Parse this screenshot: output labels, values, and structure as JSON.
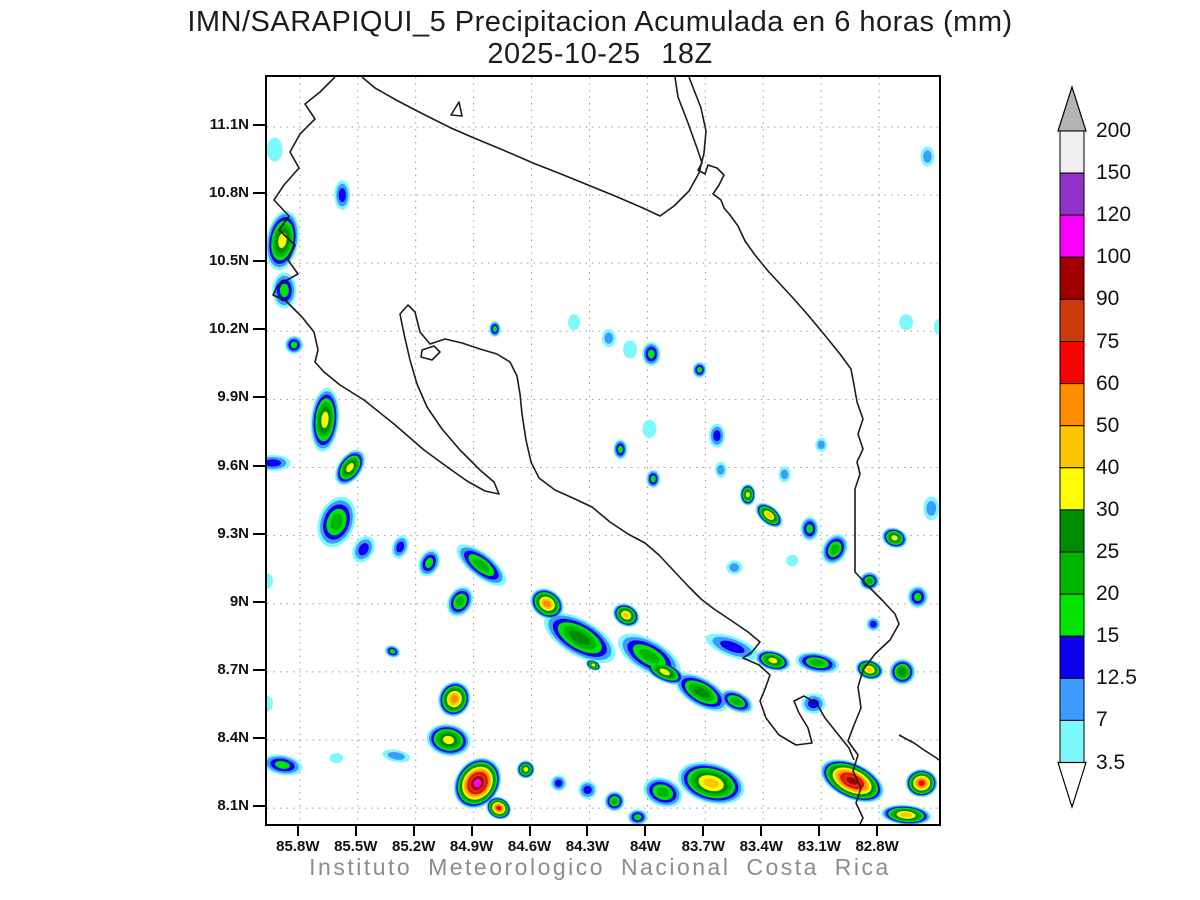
{
  "title": {
    "line1": "IMN/SARAPIQUI_5 Precipitacion Acumulada en 6 horas (mm)",
    "line2": "2025-10-25 18Z"
  },
  "footer": "Instituto Meteorologico Nacional Costa Rica",
  "chart_data": {
    "type": "contour-map",
    "variable": "Precipitacion Acumulada en 6 horas (mm)",
    "valid_time": "2025-10-25 18Z",
    "model_domain": "IMN/SARAPIQUI_5",
    "lon_range_degW": [
      85.97,
      82.49
    ],
    "lat_range_degN": [
      11.32,
      8.03
    ],
    "lon_ticks_degW": [
      85.8,
      85.5,
      85.2,
      84.9,
      84.6,
      84.3,
      84.0,
      83.7,
      83.4,
      83.1,
      82.8
    ],
    "lon_tick_labels": [
      "85.8W",
      "85.5W",
      "85.2W",
      "84.9W",
      "84.6W",
      "84.3W",
      "84W",
      "83.7W",
      "83.4W",
      "83.1W",
      "82.8W"
    ],
    "lat_ticks_degN": [
      11.1,
      10.8,
      10.5,
      10.2,
      9.9,
      9.6,
      9.3,
      9.0,
      8.7,
      8.4,
      8.1
    ],
    "lat_tick_labels": [
      "11.1N",
      "10.8N",
      "10.5N",
      "10.2N",
      "9.9N",
      "9.6N",
      "9.3N",
      "9N",
      "8.7N",
      "8.4N",
      "8.1N"
    ],
    "grid": "dotted",
    "colorbar": {
      "units": "mm",
      "levels": [
        3.5,
        7,
        12.5,
        15,
        20,
        25,
        30,
        40,
        50,
        60,
        75,
        90,
        100,
        120,
        150,
        200
      ],
      "colors_low_to_high": [
        "#7ef9fb",
        "#3d9bfe",
        "#0d00f2",
        "#00e400",
        "#00b400",
        "#008c00",
        "#fdfd00",
        "#fec800",
        "#fe8d00",
        "#fb0000",
        "#cc3a0e",
        "#a10000",
        "#fb00fb",
        "#9231c8",
        "#efefef"
      ],
      "above_top_color": "#b4b4b4",
      "below_bottom_color": "#ffffff",
      "labels_top_to_bottom": [
        "200",
        "150",
        "120",
        "100",
        "90",
        "75",
        "60",
        "50",
        "40",
        "30",
        "25",
        "20",
        "15",
        "12.5",
        "7",
        "3.5"
      ]
    },
    "cell_format": [
      "lonW",
      "latN",
      "rx_deg",
      "ry_deg",
      "rotation_deg",
      "max_level_index"
    ],
    "cells": [
      [
        85.93,
        11.0,
        0.041,
        0.053,
        0,
        0
      ],
      [
        85.89,
        10.6,
        0.083,
        0.132,
        10,
        6
      ],
      [
        85.88,
        10.38,
        0.062,
        0.079,
        0,
        3
      ],
      [
        85.58,
        10.8,
        0.041,
        0.066,
        0,
        2
      ],
      [
        85.83,
        10.14,
        0.047,
        0.04,
        0,
        3
      ],
      [
        85.67,
        9.81,
        0.073,
        0.141,
        5,
        6
      ],
      [
        85.54,
        9.6,
        0.062,
        0.088,
        35,
        6
      ],
      [
        85.94,
        9.62,
        0.093,
        0.035,
        0,
        2
      ],
      [
        85.61,
        9.36,
        0.093,
        0.115,
        20,
        4
      ],
      [
        85.47,
        9.24,
        0.052,
        0.062,
        30,
        2
      ],
      [
        85.28,
        9.25,
        0.041,
        0.053,
        20,
        2
      ],
      [
        85.13,
        9.18,
        0.052,
        0.062,
        25,
        3
      ],
      [
        84.97,
        9.01,
        0.062,
        0.07,
        30,
        4
      ],
      [
        85.97,
        9.1,
        0.031,
        0.035,
        0,
        0
      ],
      [
        84.79,
        10.21,
        0.031,
        0.035,
        0,
        3
      ],
      [
        84.14,
        9.68,
        0.036,
        0.044,
        0,
        3
      ],
      [
        83.97,
        9.55,
        0.036,
        0.04,
        0,
        3
      ],
      [
        83.64,
        9.74,
        0.041,
        0.053,
        0,
        2
      ],
      [
        84.2,
        10.17,
        0.036,
        0.04,
        0,
        1
      ],
      [
        83.98,
        10.1,
        0.047,
        0.053,
        0,
        3
      ],
      [
        83.73,
        10.03,
        0.036,
        0.035,
        0,
        3
      ],
      [
        82.55,
        10.97,
        0.036,
        0.044,
        0,
        1
      ],
      [
        82.66,
        10.24,
        0.036,
        0.035,
        0,
        0
      ],
      [
        82.49,
        10.22,
        0.026,
        0.035,
        0,
        0
      ],
      [
        84.38,
        10.24,
        0.031,
        0.035,
        0,
        0
      ],
      [
        84.09,
        10.12,
        0.036,
        0.04,
        0,
        0
      ],
      [
        83.99,
        9.77,
        0.036,
        0.04,
        0,
        0
      ],
      [
        83.62,
        9.59,
        0.031,
        0.035,
        0,
        1
      ],
      [
        83.55,
        9.16,
        0.041,
        0.031,
        0,
        1
      ],
      [
        84.86,
        9.17,
        0.155,
        0.053,
        38,
        4
      ],
      [
        84.52,
        9.0,
        0.093,
        0.062,
        35,
        8
      ],
      [
        84.35,
        8.85,
        0.207,
        0.079,
        30,
        5
      ],
      [
        84.11,
        8.95,
        0.073,
        0.048,
        30,
        7
      ],
      [
        83.91,
        8.7,
        0.114,
        0.044,
        25,
        6
      ],
      [
        83.99,
        8.77,
        0.181,
        0.07,
        30,
        4
      ],
      [
        83.72,
        8.61,
        0.155,
        0.062,
        30,
        5
      ],
      [
        84.28,
        8.73,
        0.041,
        0.022,
        25,
        6
      ],
      [
        83.56,
        8.81,
        0.145,
        0.044,
        20,
        2
      ],
      [
        83.48,
        9.48,
        0.041,
        0.048,
        0,
        6
      ],
      [
        83.37,
        9.39,
        0.083,
        0.04,
        40,
        7
      ],
      [
        83.16,
        9.33,
        0.047,
        0.053,
        0,
        3
      ],
      [
        83.03,
        9.24,
        0.062,
        0.07,
        30,
        4
      ],
      [
        82.72,
        9.29,
        0.067,
        0.044,
        20,
        6
      ],
      [
        82.6,
        9.03,
        0.052,
        0.048,
        0,
        3
      ],
      [
        82.85,
        9.1,
        0.052,
        0.04,
        0,
        4
      ],
      [
        82.53,
        9.42,
        0.041,
        0.053,
        0,
        1
      ],
      [
        83.1,
        9.7,
        0.031,
        0.031,
        0,
        1
      ],
      [
        83.29,
        9.57,
        0.031,
        0.035,
        0,
        1
      ],
      [
        85.0,
        8.58,
        0.083,
        0.079,
        20,
        8
      ],
      [
        85.03,
        8.4,
        0.114,
        0.07,
        10,
        6
      ],
      [
        84.88,
        8.21,
        0.114,
        0.119,
        35,
        12
      ],
      [
        84.77,
        8.1,
        0.067,
        0.048,
        30,
        9
      ],
      [
        84.63,
        8.27,
        0.047,
        0.04,
        0,
        6
      ],
      [
        84.46,
        8.21,
        0.041,
        0.035,
        0,
        2
      ],
      [
        84.31,
        8.18,
        0.047,
        0.04,
        0,
        2
      ],
      [
        84.17,
        8.13,
        0.052,
        0.044,
        0,
        4
      ],
      [
        83.67,
        8.21,
        0.176,
        0.088,
        15,
        7
      ],
      [
        83.92,
        8.17,
        0.104,
        0.062,
        20,
        4
      ],
      [
        84.05,
        8.06,
        0.052,
        0.035,
        0,
        3
      ],
      [
        85.89,
        8.29,
        0.104,
        0.044,
        10,
        3
      ],
      [
        85.61,
        8.32,
        0.036,
        0.022,
        0,
        0
      ],
      [
        85.97,
        8.56,
        0.031,
        0.035,
        0,
        0
      ],
      [
        85.3,
        8.33,
        0.073,
        0.026,
        10,
        1
      ],
      [
        85.32,
        8.79,
        0.041,
        0.026,
        20,
        3
      ],
      [
        83.35,
        8.75,
        0.093,
        0.044,
        15,
        6
      ],
      [
        83.12,
        8.74,
        0.114,
        0.044,
        10,
        4
      ],
      [
        82.85,
        8.71,
        0.073,
        0.044,
        15,
        7
      ],
      [
        82.68,
        8.7,
        0.067,
        0.057,
        0,
        5
      ],
      [
        82.94,
        8.22,
        0.176,
        0.079,
        25,
        11
      ],
      [
        82.58,
        8.21,
        0.083,
        0.062,
        0,
        9
      ],
      [
        82.66,
        8.07,
        0.13,
        0.044,
        5,
        7
      ],
      [
        83.14,
        8.56,
        0.062,
        0.044,
        0,
        2
      ],
      [
        82.83,
        8.91,
        0.036,
        0.031,
        0,
        2
      ],
      [
        83.25,
        9.19,
        0.031,
        0.026,
        0,
        0
      ],
      [
        83.54,
        8.57,
        0.093,
        0.044,
        25,
        4
      ]
    ],
    "coastlines": [
      "M68,0 L53,15 38,27 48,42 33,57 23,75 32,91 17,108 7,123 22,139 12,153 28,168 21,183 31,197 11,208 6,218 19,224 35,240 47,255 51,273 48,285 57,295 73,308 97,323 127,347 157,373 183,392 200,404 218,414 232,417 227,405 213,393 193,373 175,352 160,330 150,307 143,283 137,257 133,237 141,228 148,235 153,255 163,267 178,262 195,266 213,272 230,277 243,285 250,299 253,317 255,337 259,363 264,385 272,401 288,413 308,422 325,430 343,445 361,457 378,466 392,478 406,493 422,510 434,522 447,532 462,542 481,555 493,565 485,575 476,581 492,588 503,598 498,612 493,624 499,641 512,658 529,668 545,666 541,651 532,636 527,624 537,619 550,627 558,641 570,656 582,671 587,683",
      "M95,0 L108,11 131,24 156,37 184,51 207,61 236,73 266,86 294,97 321,108 348,119 376,131 393,139 407,129 422,114 432,96 437,76 439,54 434,31 427,13 422,0",
      "M408,0 L411,20 421,46 430,71 435,86 431,93 438,97 441,88 450,91 457,98 452,108 446,117 454,123 457,131 463,138 471,149 478,164 488,178 501,194 514,208 526,221 541,238 556,256 573,277 584,292 587,308 590,325 596,342 591,357 596,372 590,385 593,397 588,412 588,465 588,495 601,509 616,524 628,537 632,547 623,563 608,577 596,593 591,610 594,631 587,648 581,664 591,678 586,694 594,711 589,726 596,741 593,747",
      "M632,658 L647,666 657,673 668,680 672,683",
      "M184,38 L192,25 195,39 Z",
      "M155,273 L167,269 173,275 165,283 154,280 Z"
    ]
  }
}
